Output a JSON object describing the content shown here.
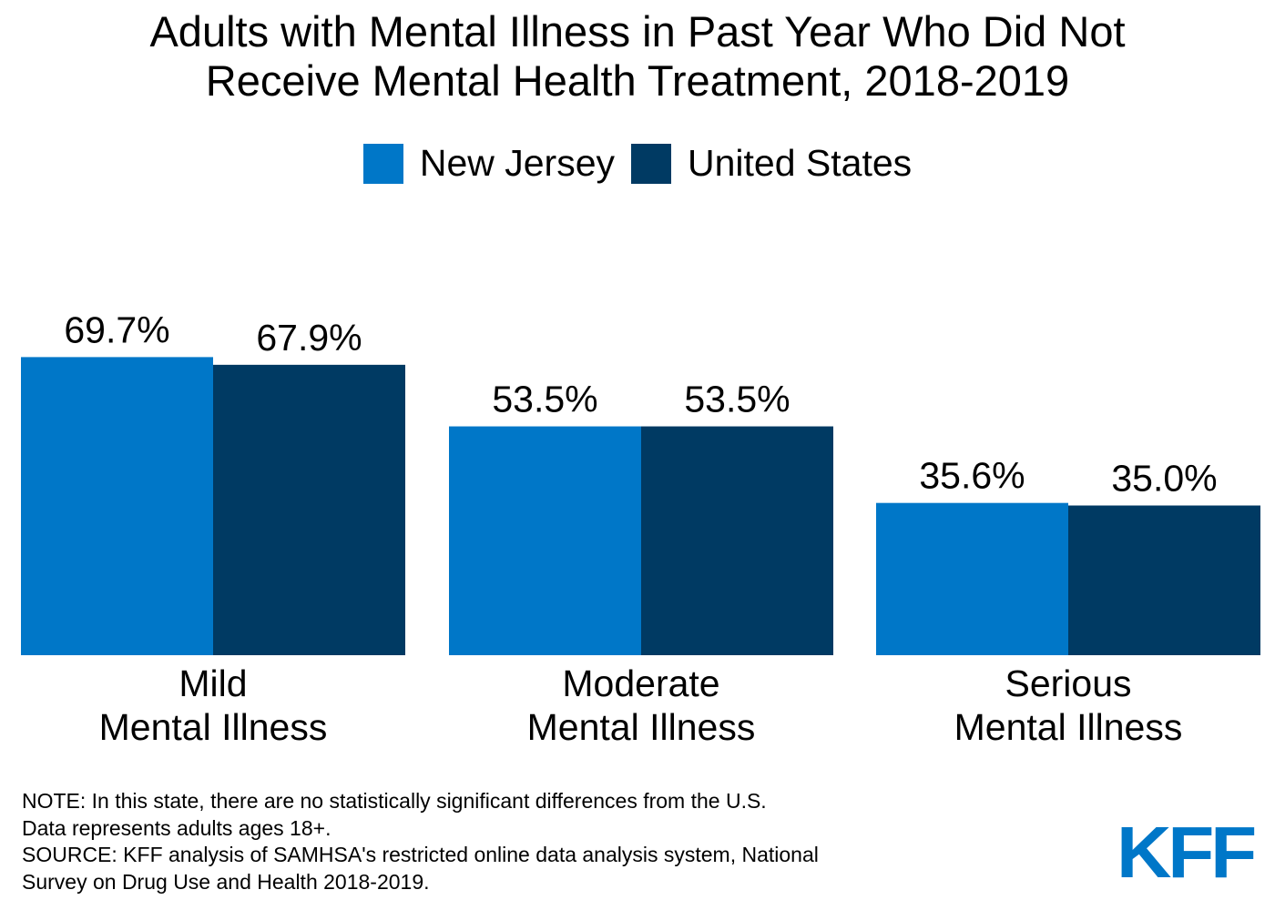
{
  "title": {
    "line1": "Adults with Mental Illness in Past Year Who Did Not",
    "line2": "Receive Mental Health Treatment, 2018-2019"
  },
  "colors": {
    "new_jersey": "#0077c8",
    "united_states": "#003a63",
    "logo": "#0077c8"
  },
  "chart_data": {
    "type": "bar",
    "categories": [
      [
        "Mild",
        "Mental Illness"
      ],
      [
        "Moderate",
        "Mental Illness"
      ],
      [
        "Serious",
        "Mental Illness"
      ]
    ],
    "series": [
      {
        "name": "New Jersey",
        "values": [
          69.7,
          53.5,
          35.6
        ],
        "labels": [
          "69.7%",
          "53.5%",
          "35.6%"
        ]
      },
      {
        "name": "United States",
        "values": [
          67.9,
          53.5,
          35.0
        ],
        "labels": [
          "67.9%",
          "53.5%",
          "35.0%"
        ]
      }
    ],
    "legend_position": "top-center",
    "grid": false
  },
  "notes": {
    "line1": "NOTE: In this state, there are no statistically significant differences from the U.S.",
    "line2": "Data represents adults ages 18+.",
    "line3": "SOURCE: KFF analysis of SAMHSA's restricted online data analysis system, National",
    "line4": "Survey on Drug Use and Health 2018-2019."
  },
  "logo": {
    "text": "KFF"
  }
}
